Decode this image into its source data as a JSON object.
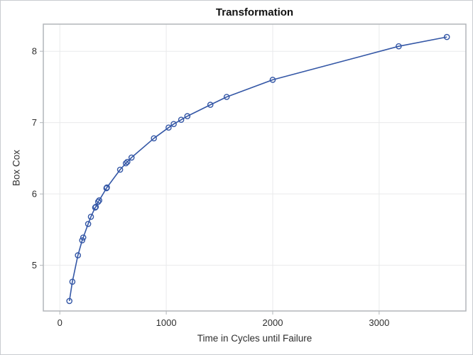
{
  "chart_data": {
    "type": "line",
    "title": "Transformation",
    "xlabel": "Time in Cycles until Failure",
    "ylabel": "Box Cox",
    "x": [
      90,
      118,
      170,
      210,
      220,
      266,
      292,
      332,
      338,
      360,
      370,
      438,
      442,
      566,
      620,
      634,
      674,
      884,
      1022,
      1070,
      1140,
      1198,
      1414,
      1568,
      2000,
      3184,
      3636
    ],
    "y": [
      4.5,
      4.77,
      5.14,
      5.35,
      5.39,
      5.58,
      5.68,
      5.81,
      5.82,
      5.89,
      5.91,
      6.08,
      6.09,
      6.34,
      6.43,
      6.45,
      6.51,
      6.78,
      6.93,
      6.98,
      7.04,
      7.09,
      7.25,
      7.36,
      7.6,
      8.07,
      8.2
    ],
    "x_ticks": [
      0,
      1000,
      2000,
      3000
    ],
    "y_ticks": [
      5,
      6,
      7,
      8
    ],
    "x_range": [
      -155,
      3815
    ],
    "y_range": [
      4.36,
      8.38
    ],
    "grid": true,
    "legend": "none",
    "marker": "open-circle",
    "colors": {
      "series": "#3457A6",
      "grid": "#e9eaeb",
      "frame": "#b2b6ba",
      "tick": "#b2b6ba",
      "text": "#2e2e2e",
      "title_text": "#111111",
      "background": "#ffffff",
      "outer_border": "#c9ccd0"
    }
  }
}
